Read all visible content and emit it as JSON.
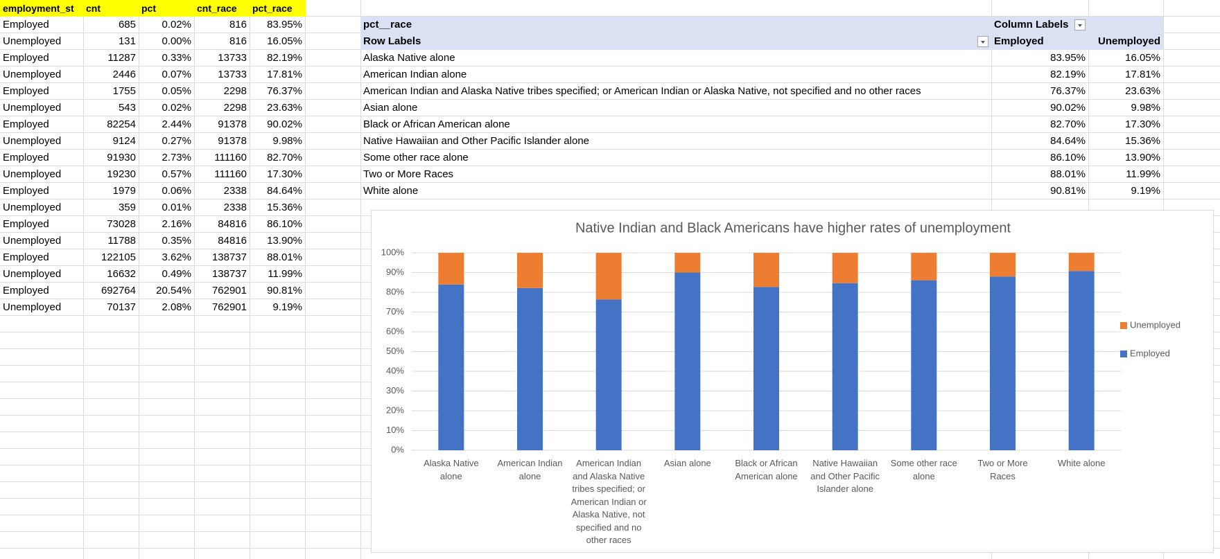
{
  "table": {
    "headers": [
      "employment_st",
      "cnt",
      "pct",
      "cnt_race",
      "pct_race"
    ],
    "rows": [
      [
        "Employed",
        "685",
        "0.02%",
        "816",
        "83.95%"
      ],
      [
        "Unemployed",
        "131",
        "0.00%",
        "816",
        "16.05%"
      ],
      [
        "Employed",
        "11287",
        "0.33%",
        "13733",
        "82.19%"
      ],
      [
        "Unemployed",
        "2446",
        "0.07%",
        "13733",
        "17.81%"
      ],
      [
        "Employed",
        "1755",
        "0.05%",
        "2298",
        "76.37%"
      ],
      [
        "Unemployed",
        "543",
        "0.02%",
        "2298",
        "23.63%"
      ],
      [
        "Employed",
        "82254",
        "2.44%",
        "91378",
        "90.02%"
      ],
      [
        "Unemployed",
        "9124",
        "0.27%",
        "91378",
        "9.98%"
      ],
      [
        "Employed",
        "91930",
        "2.73%",
        "111160",
        "82.70%"
      ],
      [
        "Unemployed",
        "19230",
        "0.57%",
        "111160",
        "17.30%"
      ],
      [
        "Employed",
        "1979",
        "0.06%",
        "2338",
        "84.64%"
      ],
      [
        "Unemployed",
        "359",
        "0.01%",
        "2338",
        "15.36%"
      ],
      [
        "Employed",
        "73028",
        "2.16%",
        "84816",
        "86.10%"
      ],
      [
        "Unemployed",
        "11788",
        "0.35%",
        "84816",
        "13.90%"
      ],
      [
        "Employed",
        "122105",
        "3.62%",
        "138737",
        "88.01%"
      ],
      [
        "Unemployed",
        "16632",
        "0.49%",
        "138737",
        "11.99%"
      ],
      [
        "Employed",
        "692764",
        "20.54%",
        "762901",
        "90.81%"
      ],
      [
        "Unemployed",
        "70137",
        "2.08%",
        "762901",
        "9.19%"
      ]
    ]
  },
  "pivot": {
    "value_field": "pct__race",
    "column_labels": "Column Labels",
    "row_labels": "Row Labels",
    "columns": [
      "Employed",
      "Unemployed"
    ],
    "rows": [
      {
        "label": "Alaska Native alone",
        "values": [
          "83.95%",
          "16.05%"
        ]
      },
      {
        "label": "American Indian alone",
        "values": [
          "82.19%",
          "17.81%"
        ]
      },
      {
        "label": "American Indian and Alaska Native tribes specified; or American Indian or Alaska Native, not specified and no other races",
        "values": [
          "76.37%",
          "23.63%"
        ]
      },
      {
        "label": "Asian alone",
        "values": [
          "90.02%",
          "9.98%"
        ]
      },
      {
        "label": "Black or African American alone",
        "values": [
          "82.70%",
          "17.30%"
        ]
      },
      {
        "label": "Native Hawaiian and Other Pacific Islander alone",
        "values": [
          "84.64%",
          "15.36%"
        ]
      },
      {
        "label": "Some other race alone",
        "values": [
          "86.10%",
          "13.90%"
        ]
      },
      {
        "label": "Two or More Races",
        "values": [
          "88.01%",
          "11.99%"
        ]
      },
      {
        "label": "White alone",
        "values": [
          "90.81%",
          "9.19%"
        ]
      }
    ]
  },
  "chart_data": {
    "type": "bar",
    "stacked": true,
    "title": "Native Indian and Black Americans have higher rates of unemployment",
    "categories": [
      "Alaska Native alone",
      "American Indian alone",
      "American Indian and Alaska Native tribes specified; or American Indian or Alaska Native, not specified and no other races",
      "Asian alone",
      "Black or African American alone",
      "Native Hawaiian and Other Pacific Islander alone",
      "Some other race alone",
      "Two or More Races",
      "White alone"
    ],
    "series": [
      {
        "name": "Employed",
        "color": "#4472c4",
        "values": [
          83.95,
          82.19,
          76.37,
          90.02,
          82.7,
          84.64,
          86.1,
          88.01,
          90.81
        ]
      },
      {
        "name": "Unemployed",
        "color": "#ed7d31",
        "values": [
          16.05,
          17.81,
          23.63,
          9.98,
          17.3,
          15.36,
          13.9,
          11.99,
          9.19
        ]
      }
    ],
    "ylim": [
      0,
      100
    ],
    "yticks": [
      {
        "value": 0,
        "label": "0%"
      },
      {
        "value": 10,
        "label": "10%"
      },
      {
        "value": 20,
        "label": "20%"
      },
      {
        "value": 30,
        "label": "30%"
      },
      {
        "value": 40,
        "label": "40%"
      },
      {
        "value": 50,
        "label": "50%"
      },
      {
        "value": 60,
        "label": "60%"
      },
      {
        "value": 70,
        "label": "70%"
      },
      {
        "value": 80,
        "label": "80%"
      },
      {
        "value": 90,
        "label": "90%"
      },
      {
        "value": 100,
        "label": "100%"
      }
    ],
    "grid": true,
    "legend": "right"
  }
}
